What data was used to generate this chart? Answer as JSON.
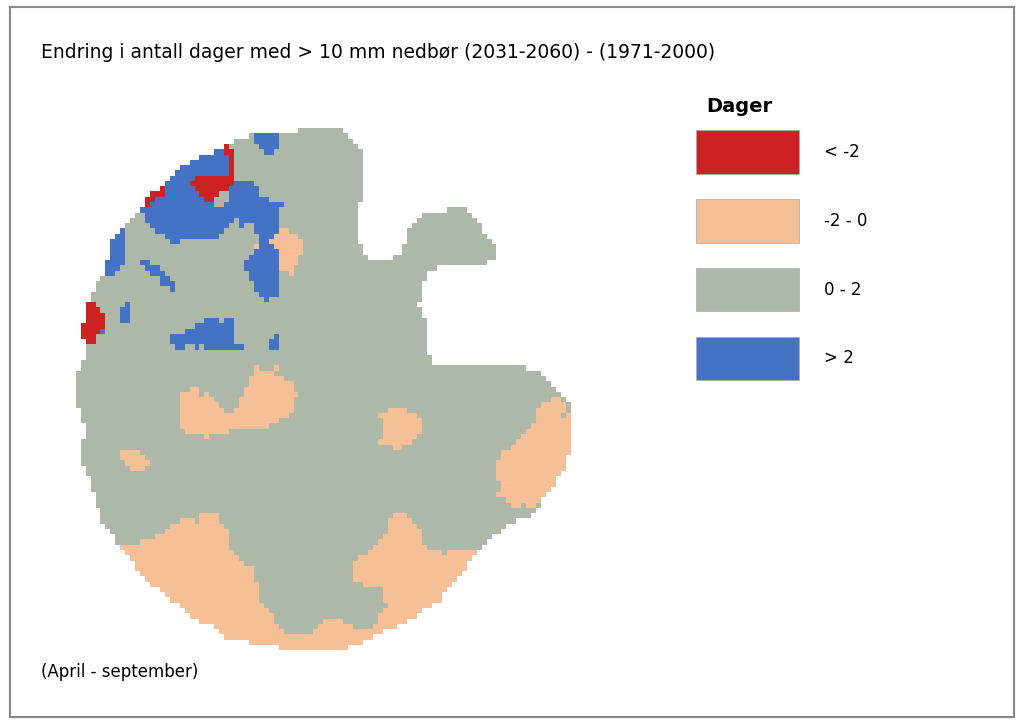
{
  "title": "Endring i antall dager med > 10 mm nedbør (2031-2060) - (1971-2000)",
  "subtitle": "(April - september)",
  "legend_title": "Dager",
  "legend_items": [
    {
      "label": "< -2",
      "color": "#cc2222"
    },
    {
      "label": "-2 - 0",
      "color": "#f5c096"
    },
    {
      "label": "0 - 2",
      "color": "#adb8a8"
    },
    {
      "label": "> 2",
      "color": "#4472c4"
    }
  ],
  "background_color": "#ffffff",
  "border_color": "#aaaaaa",
  "seed": 42,
  "grid_nx": 120,
  "grid_ny": 110,
  "fig_width": 10.24,
  "fig_height": 7.24,
  "dpi": 100
}
